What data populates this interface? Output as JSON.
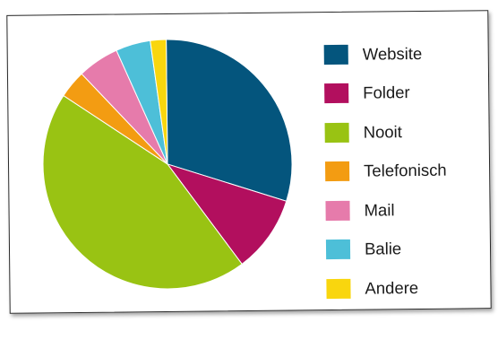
{
  "chart_data": {
    "type": "pie",
    "title": "",
    "categories": [
      "Website",
      "Folder",
      "Nooit",
      "Telefonisch",
      "Mail",
      "Balie",
      "Andere"
    ],
    "values": [
      30.6,
      10.2,
      45.4,
      3.7,
      5.5,
      4.6,
      2.1
    ],
    "colors": [
      "#04557d",
      "#b20f5e",
      "#99c313",
      "#f39c12",
      "#e67bab",
      "#4dbfd8",
      "#f9d60e"
    ],
    "legend": {
      "position": "right",
      "entries": [
        "Website",
        "Folder",
        "Nooit",
        "Telefonisch",
        "Mail",
        "Balie",
        "Andere"
      ]
    }
  }
}
